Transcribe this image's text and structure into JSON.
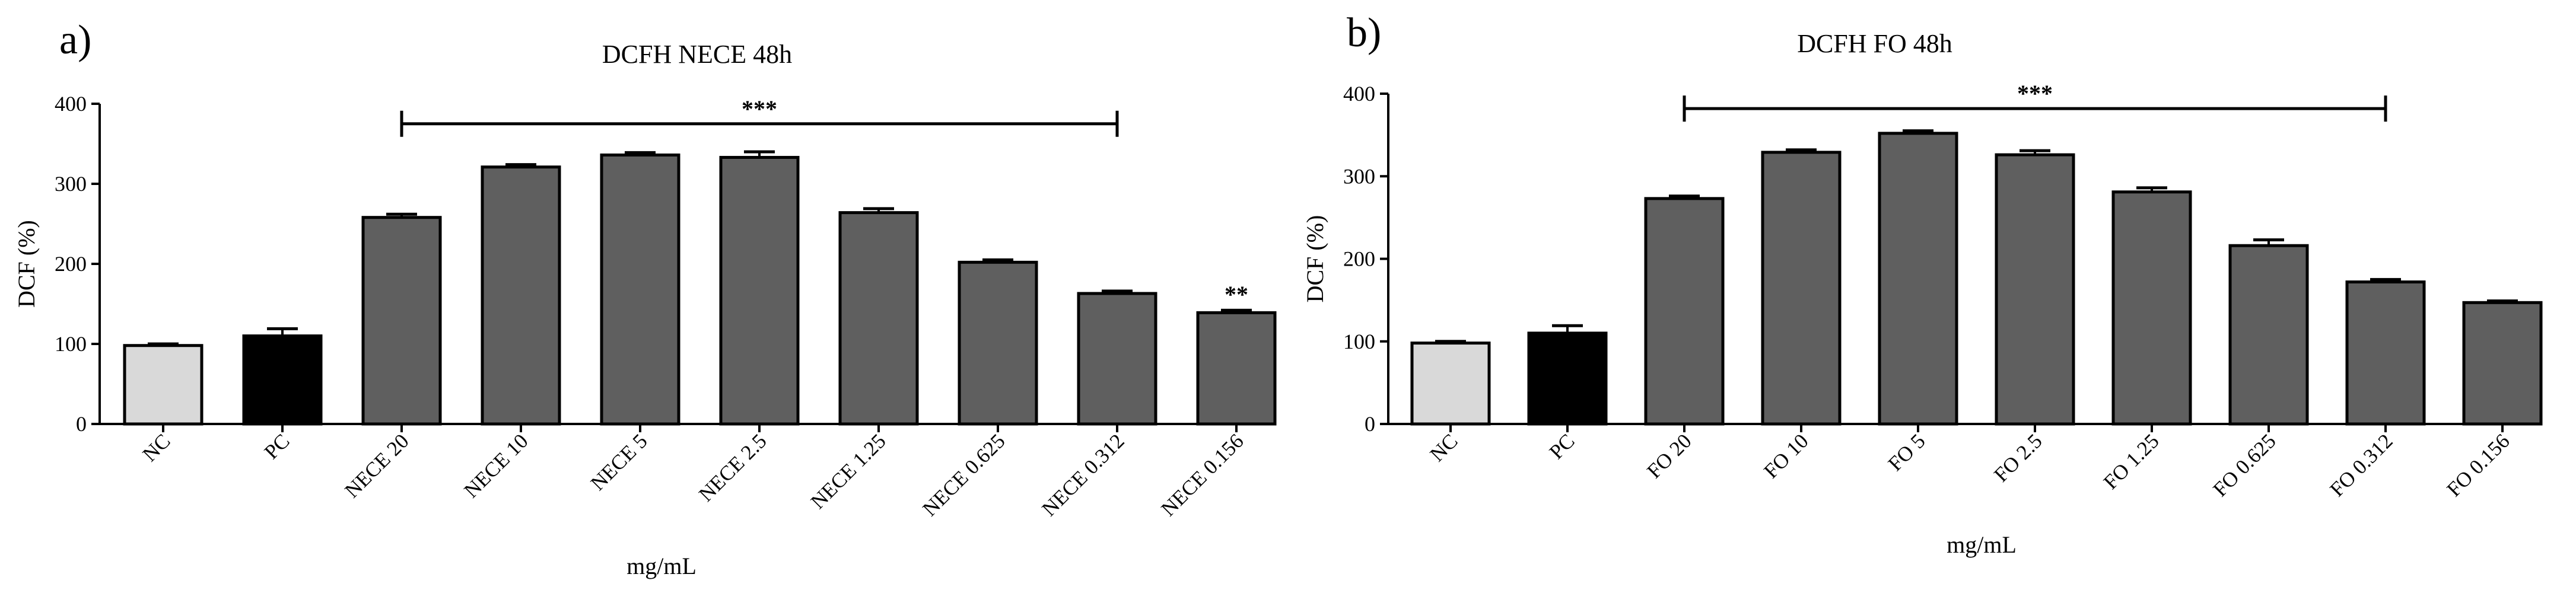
{
  "chart_data": [
    {
      "type": "bar",
      "panel_label": "a)",
      "title": "DCFH NECE 48h",
      "xlabel": "mg/mL",
      "ylabel": "DCF (%)",
      "ylim": [
        0,
        400
      ],
      "yticks": [
        0,
        100,
        200,
        300,
        400
      ],
      "grid": false,
      "categories": [
        "NC",
        "PC",
        "NECE 20",
        "NECE 10",
        "NECE 5",
        "NECE 2.5",
        "NECE 1.25",
        "NECE 0.625",
        "NECE 0.312",
        "NECE 0.156"
      ],
      "values": [
        98,
        110,
        258,
        321,
        336,
        333,
        264,
        202,
        163,
        139
      ],
      "errors": [
        2,
        9,
        4,
        3,
        3,
        7,
        5,
        3,
        3,
        3
      ],
      "bar_colors": [
        "#d9d9d9",
        "#000000",
        "#5f5f5f",
        "#5f5f5f",
        "#5f5f5f",
        "#5f5f5f",
        "#5f5f5f",
        "#5f5f5f",
        "#5f5f5f",
        "#5f5f5f"
      ],
      "annotations": [
        {
          "text": "***",
          "type": "bracket",
          "from": "NECE 20",
          "to": "NECE 0.312",
          "y": 375
        },
        {
          "text": "**",
          "type": "label",
          "category": "NECE 0.156",
          "y": 152
        }
      ]
    },
    {
      "type": "bar",
      "panel_label": "b)",
      "title": "DCFH FO 48h",
      "xlabel": "mg/mL",
      "ylabel": "DCF (%)",
      "ylim": [
        0,
        400
      ],
      "yticks": [
        0,
        100,
        200,
        300,
        400
      ],
      "grid": false,
      "categories": [
        "NC",
        "PC",
        "FO 20",
        "FO 10",
        "FO 5",
        "FO 2.5",
        "FO 1.25",
        "FO 0.625",
        "FO 0.312",
        "FO 0.156"
      ],
      "values": [
        98,
        110,
        273,
        329,
        352,
        326,
        281,
        216,
        172,
        147
      ],
      "errors": [
        2,
        9,
        3,
        3,
        3,
        5,
        5,
        7,
        3,
        2
      ],
      "bar_colors": [
        "#d9d9d9",
        "#000000",
        "#5f5f5f",
        "#5f5f5f",
        "#5f5f5f",
        "#5f5f5f",
        "#5f5f5f",
        "#5f5f5f",
        "#5f5f5f",
        "#5f5f5f"
      ],
      "annotations": [
        {
          "text": "***",
          "type": "bracket",
          "from": "FO 20",
          "to": "FO 0.312",
          "y": 382
        }
      ]
    }
  ]
}
